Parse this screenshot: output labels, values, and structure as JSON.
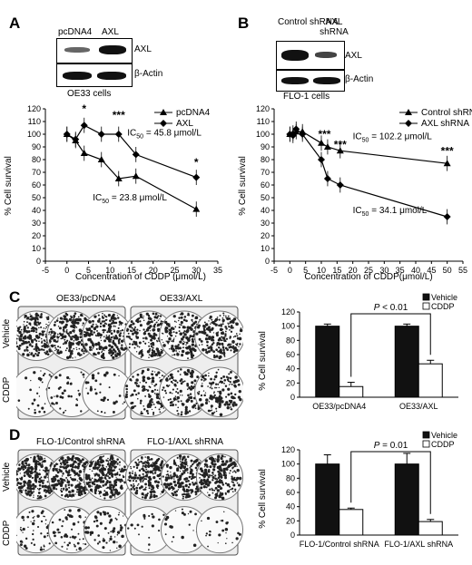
{
  "panels": {
    "a": "A",
    "b": "B",
    "c": "C",
    "d": "D"
  },
  "blot_a": {
    "lanes": [
      "pcDNA4",
      "AXL"
    ],
    "protein1": "AXL",
    "protein2": "β-Actin",
    "caption": "OE33 cells"
  },
  "blot_b": {
    "lanes": [
      "Control shRNA",
      "AXL shRNA"
    ],
    "protein1": "AXL",
    "protein2": "β-Actin",
    "caption": "FLO-1 cells"
  },
  "plate_c": {
    "titles": [
      "OE33/pcDNA4",
      "OE33/AXL"
    ],
    "rows": [
      "Vehicle",
      "CDDP"
    ]
  },
  "plate_d": {
    "titles": [
      "FLO-1/Control shRNA",
      "FLO-1/AXL shRNA"
    ],
    "rows": [
      "Vehicle",
      "CDDP"
    ]
  },
  "colors": {
    "vehicle": "#111111",
    "cddp": "#ffffff"
  },
  "chart_data": [
    {
      "id": "A",
      "type": "line",
      "xlabel": "Concentration of CDDP (μmol/L)",
      "ylabel": "% Cell survival",
      "xlim": [
        -5,
        35
      ],
      "ylim": [
        0,
        120
      ],
      "xticks": [
        -5,
        0,
        5,
        10,
        15,
        20,
        25,
        30,
        35
      ],
      "yticks": [
        0,
        10,
        20,
        30,
        40,
        50,
        60,
        70,
        80,
        90,
        100,
        110,
        120
      ],
      "legend": "top-right",
      "series": [
        {
          "name": "pcDNA4",
          "marker": "triangle",
          "x": [
            0,
            2,
            4,
            8,
            12,
            16,
            30
          ],
          "y": [
            100,
            95,
            85,
            80,
            65,
            67,
            41
          ]
        },
        {
          "name": "AXL",
          "marker": "diamond",
          "x": [
            0,
            2,
            4,
            8,
            12,
            16,
            30
          ],
          "y": [
            100,
            96,
            107,
            100,
            100,
            84,
            66
          ]
        }
      ],
      "annotations": [
        {
          "text": "*",
          "x": 4,
          "y": 117
        },
        {
          "text": "***",
          "x": 12,
          "y": 112
        },
        {
          "text": "*",
          "x": 30,
          "y": 75
        }
      ],
      "ic50": [
        {
          "text": "IC",
          "sub": "50",
          "rest": " = 45.8 μmol/L",
          "x": 14,
          "y": 99
        },
        {
          "text": "IC",
          "sub": "50",
          "rest": " = 23.8 μmol/L",
          "x": 6,
          "y": 48
        }
      ]
    },
    {
      "id": "B",
      "type": "line",
      "xlabel": "Concentration of CDDP(μmol/L)",
      "ylabel": "% Cell survival",
      "xlim": [
        -5,
        55
      ],
      "ylim": [
        0,
        120
      ],
      "xticks": [
        -5,
        0,
        5,
        10,
        15,
        20,
        25,
        30,
        35,
        40,
        45,
        50,
        55
      ],
      "yticks": [
        0,
        10,
        20,
        30,
        40,
        50,
        60,
        70,
        80,
        90,
        100,
        110,
        120
      ],
      "legend": "top-right",
      "series": [
        {
          "name": "Control shRNA",
          "marker": "triangle",
          "x": [
            0,
            1,
            2,
            4,
            10,
            12,
            16,
            50
          ],
          "y": [
            100,
            101,
            102,
            102,
            93,
            90,
            87,
            77
          ]
        },
        {
          "name": "AXL shRNA",
          "marker": "diamond",
          "x": [
            0,
            1,
            2,
            4,
            10,
            12,
            16,
            50
          ],
          "y": [
            100,
            99,
            104,
            100,
            80,
            65,
            60,
            35
          ]
        }
      ],
      "annotations": [
        {
          "text": "***",
          "x": 11,
          "y": 97
        },
        {
          "text": "***",
          "x": 16,
          "y": 89
        },
        {
          "text": "***",
          "x": 50,
          "y": 84
        }
      ],
      "ic50": [
        {
          "text": "IC",
          "sub": "50",
          "rest": " = 102.2 μmol/L",
          "x": 20,
          "y": 96
        },
        {
          "text": "IC",
          "sub": "50",
          "rest": " = 34.1 μmol/L",
          "x": 20,
          "y": 38
        }
      ]
    },
    {
      "id": "C",
      "type": "bar",
      "categories": [
        "OE33/pcDNA4",
        "OE33/AXL"
      ],
      "ylabel": "% Cell survival",
      "ylim": [
        0,
        120
      ],
      "yticks": [
        0,
        20,
        40,
        60,
        80,
        100,
        120
      ],
      "legend": "top-right",
      "series": [
        {
          "name": "Vehicle",
          "values": [
            100,
            100
          ],
          "errors": [
            3,
            3
          ]
        },
        {
          "name": "CDDP",
          "values": [
            15,
            47
          ],
          "errors": [
            6,
            5
          ]
        }
      ],
      "pvalue": {
        "label": "P",
        "rest": " < 0.01"
      }
    },
    {
      "id": "D",
      "type": "bar",
      "categories": [
        "FLO-1/Control shRNA",
        "FLO-1/AXL shRNA"
      ],
      "ylabel": "% Cell survival",
      "ylim": [
        0,
        120
      ],
      "yticks": [
        0,
        20,
        40,
        60,
        80,
        100,
        120
      ],
      "legend": "top-right",
      "series": [
        {
          "name": "Vehicle",
          "values": [
            100,
            100
          ],
          "errors": [
            13,
            15
          ]
        },
        {
          "name": "CDDP",
          "values": [
            36,
            19
          ],
          "errors": [
            2,
            3
          ]
        }
      ],
      "pvalue": {
        "label": "P",
        "rest": " = 0.01"
      }
    }
  ]
}
